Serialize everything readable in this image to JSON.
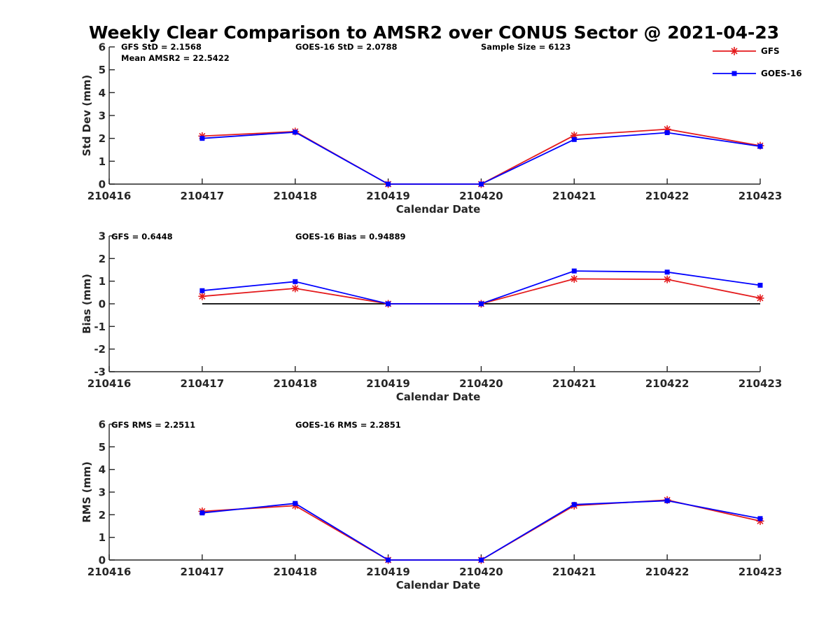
{
  "title": "Weekly Clear Comparison to AMSR2 over CONUS Sector @ 2021-04-23",
  "legend": [
    {
      "label": "GFS",
      "color": "#e41a1c",
      "marker": "asterisk"
    },
    {
      "label": "GOES-16",
      "color": "#0000ff",
      "marker": "square"
    }
  ],
  "annotations": {
    "std": [
      "GFS StD = 2.1568",
      "GOES-16 StD = 2.0788",
      "Sample Size = 6123",
      "Mean AMSR2 = 22.5422"
    ],
    "bias": [
      "GFS = 0.6448",
      "GOES-16 Bias  = 0.94889"
    ],
    "rms": [
      "GFS RMS = 2.2511",
      "GOES-16 RMS = 2.2851"
    ]
  },
  "chart_data": [
    {
      "type": "line",
      "xlabel": "Calendar Date",
      "ylabel": "Std Dev (mm)",
      "categories": [
        "210416",
        "210417",
        "210418",
        "210419",
        "210420",
        "210421",
        "210422",
        "210423"
      ],
      "ylim": [
        0,
        6
      ],
      "yticks": [
        "0",
        "1",
        "2",
        "3",
        "4",
        "5",
        "6"
      ],
      "series": [
        {
          "name": "GFS",
          "color": "#e41a1c",
          "x": [
            "210417",
            "210418",
            "210419",
            "210420",
            "210421",
            "210422",
            "210423"
          ],
          "values": [
            2.1,
            2.3,
            0,
            0,
            2.13,
            2.4,
            1.68
          ]
        },
        {
          "name": "GOES-16",
          "color": "#0000ff",
          "x": [
            "210417",
            "210418",
            "210419",
            "210420",
            "210421",
            "210422",
            "210423"
          ],
          "values": [
            2.0,
            2.27,
            0,
            0,
            1.95,
            2.25,
            1.65
          ]
        }
      ]
    },
    {
      "type": "line",
      "xlabel": "Calendar Date",
      "ylabel": "Bias (mm)",
      "categories": [
        "210416",
        "210417",
        "210418",
        "210419",
        "210420",
        "210421",
        "210422",
        "210423"
      ],
      "ylim": [
        -3,
        3
      ],
      "yticks": [
        "-3",
        "-2",
        "-1",
        "0",
        "1",
        "2",
        "3"
      ],
      "zero_line": true,
      "series": [
        {
          "name": "GFS",
          "color": "#e41a1c",
          "x": [
            "210417",
            "210418",
            "210419",
            "210420",
            "210421",
            "210422",
            "210423"
          ],
          "values": [
            0.33,
            0.68,
            0,
            0,
            1.1,
            1.08,
            0.25
          ]
        },
        {
          "name": "GOES-16",
          "color": "#0000ff",
          "x": [
            "210417",
            "210418",
            "210419",
            "210420",
            "210421",
            "210422",
            "210423"
          ],
          "values": [
            0.58,
            0.98,
            0,
            0,
            1.45,
            1.4,
            0.82
          ]
        }
      ]
    },
    {
      "type": "line",
      "xlabel": "Calendar Date",
      "ylabel": "RMS (mm)",
      "categories": [
        "210416",
        "210417",
        "210418",
        "210419",
        "210420",
        "210421",
        "210422",
        "210423"
      ],
      "ylim": [
        0,
        6
      ],
      "yticks": [
        "0",
        "1",
        "2",
        "3",
        "4",
        "5",
        "6"
      ],
      "series": [
        {
          "name": "GFS",
          "color": "#e41a1c",
          "x": [
            "210417",
            "210418",
            "210419",
            "210420",
            "210421",
            "210422",
            "210423"
          ],
          "values": [
            2.15,
            2.4,
            0,
            0,
            2.4,
            2.65,
            1.72
          ]
        },
        {
          "name": "GOES-16",
          "color": "#0000ff",
          "x": [
            "210417",
            "210418",
            "210419",
            "210420",
            "210421",
            "210422",
            "210423"
          ],
          "values": [
            2.08,
            2.5,
            0,
            0,
            2.45,
            2.62,
            1.83
          ]
        }
      ]
    }
  ]
}
